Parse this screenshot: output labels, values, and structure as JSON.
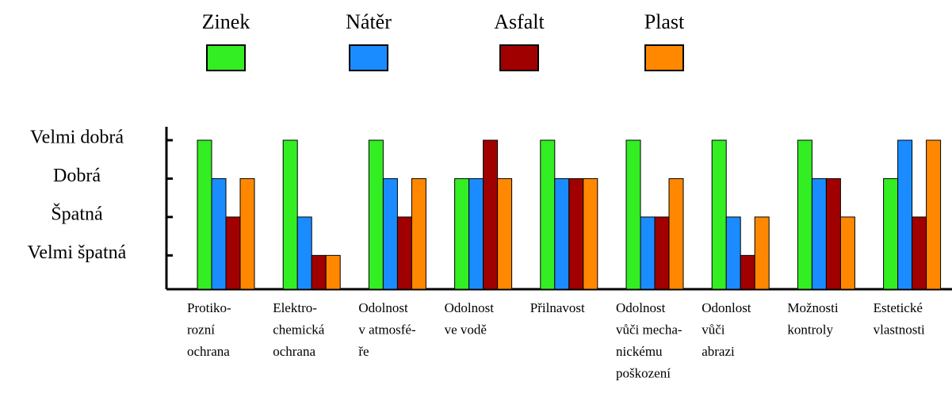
{
  "chart_data": {
    "type": "bar",
    "categories": [
      [
        "Protiko-",
        "rozní",
        "ochrana"
      ],
      [
        "Elektro-",
        "chemická",
        "ochrana"
      ],
      [
        "Odolnost",
        "v atmosfé-",
        "ře"
      ],
      [
        "Odolnost",
        "ve vodě"
      ],
      [
        "Přilnavost"
      ],
      [
        "Odolnost",
        "vůči mecha-",
        "nickému",
        "poškození"
      ],
      [
        "Odonlost",
        "vůči",
        "abrazi"
      ],
      [
        "Možnosti",
        "kontroly"
      ],
      [
        "Estetické",
        "vlastnosti"
      ]
    ],
    "series": [
      {
        "name": "Zinek",
        "color": "#33ee22",
        "values": [
          4,
          4,
          4,
          3,
          4,
          4,
          4,
          4,
          3
        ]
      },
      {
        "name": "Nátěr",
        "color": "#1a8cff",
        "values": [
          3,
          2,
          3,
          3,
          3,
          2,
          2,
          3,
          4
        ]
      },
      {
        "name": "Asfalt",
        "color": "#a00000",
        "values": [
          2,
          1,
          2,
          4,
          3,
          2,
          1,
          3,
          2
        ]
      },
      {
        "name": "Plast",
        "color": "#ff8800",
        "values": [
          3,
          1,
          3,
          3,
          3,
          3,
          2,
          2,
          4
        ]
      }
    ],
    "ylim": [
      0.12,
      4.35
    ],
    "yticks": [
      {
        "value": 1,
        "label": "Velmi špatná"
      },
      {
        "value": 2,
        "label": "Špatná"
      },
      {
        "value": 3,
        "label": "Dobrá"
      },
      {
        "value": 4,
        "label": "Velmi dobrá"
      }
    ],
    "legend": "top"
  }
}
